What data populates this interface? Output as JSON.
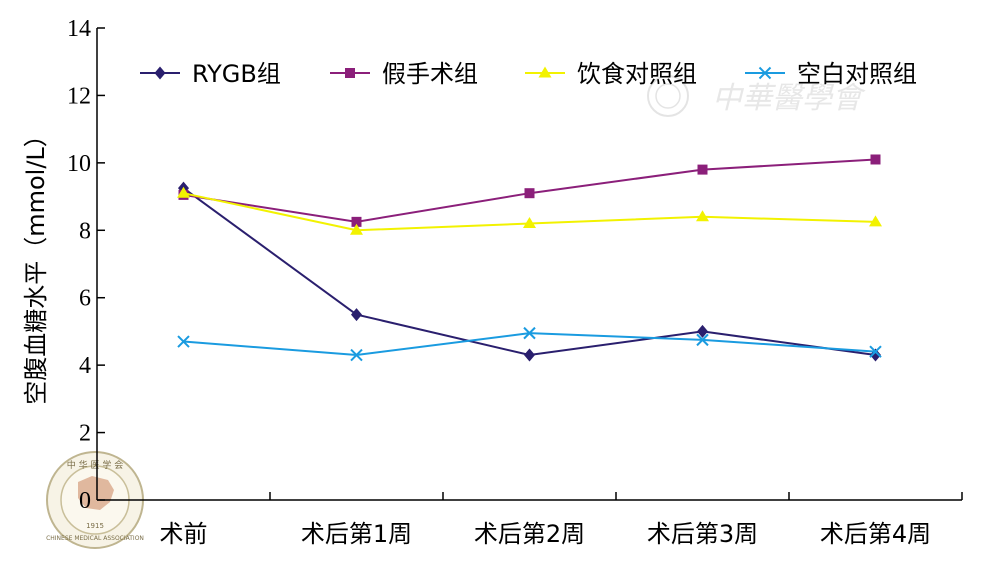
{
  "chart_data": {
    "type": "line",
    "title": "",
    "xlabel": "",
    "ylabel": "空腹血糖水平（mmol/L）",
    "ylim": [
      0,
      14
    ],
    "yticks": [
      0,
      2,
      4,
      6,
      8,
      10,
      12,
      14
    ],
    "categories": [
      "术前",
      "术后第1周",
      "术后第2周",
      "术后第3周",
      "术后第4周"
    ],
    "grid": false,
    "legend_position": "top",
    "series": [
      {
        "name": "RYGB组",
        "color": "#2a1f6e",
        "marker": "diamond",
        "values": [
          9.25,
          5.5,
          4.3,
          5.0,
          4.3
        ]
      },
      {
        "name": "假手术组",
        "color": "#8b1f7a",
        "marker": "square",
        "values": [
          9.05,
          8.25,
          9.1,
          9.8,
          10.1
        ]
      },
      {
        "name": "饮食对照组",
        "color": "#f2f200",
        "marker": "triangle",
        "values": [
          9.1,
          8.0,
          8.2,
          8.4,
          8.25
        ]
      },
      {
        "name": "空白对照组",
        "color": "#1a9be0",
        "marker": "x",
        "values": [
          4.7,
          4.3,
          4.95,
          4.75,
          4.4
        ]
      }
    ]
  },
  "watermark": {
    "text": "中華醫學會",
    "seal_top": "中 华 医 学 会",
    "seal_year": "1915",
    "seal_bottom": "CHINESE MEDICAL ASSOCIATION"
  }
}
